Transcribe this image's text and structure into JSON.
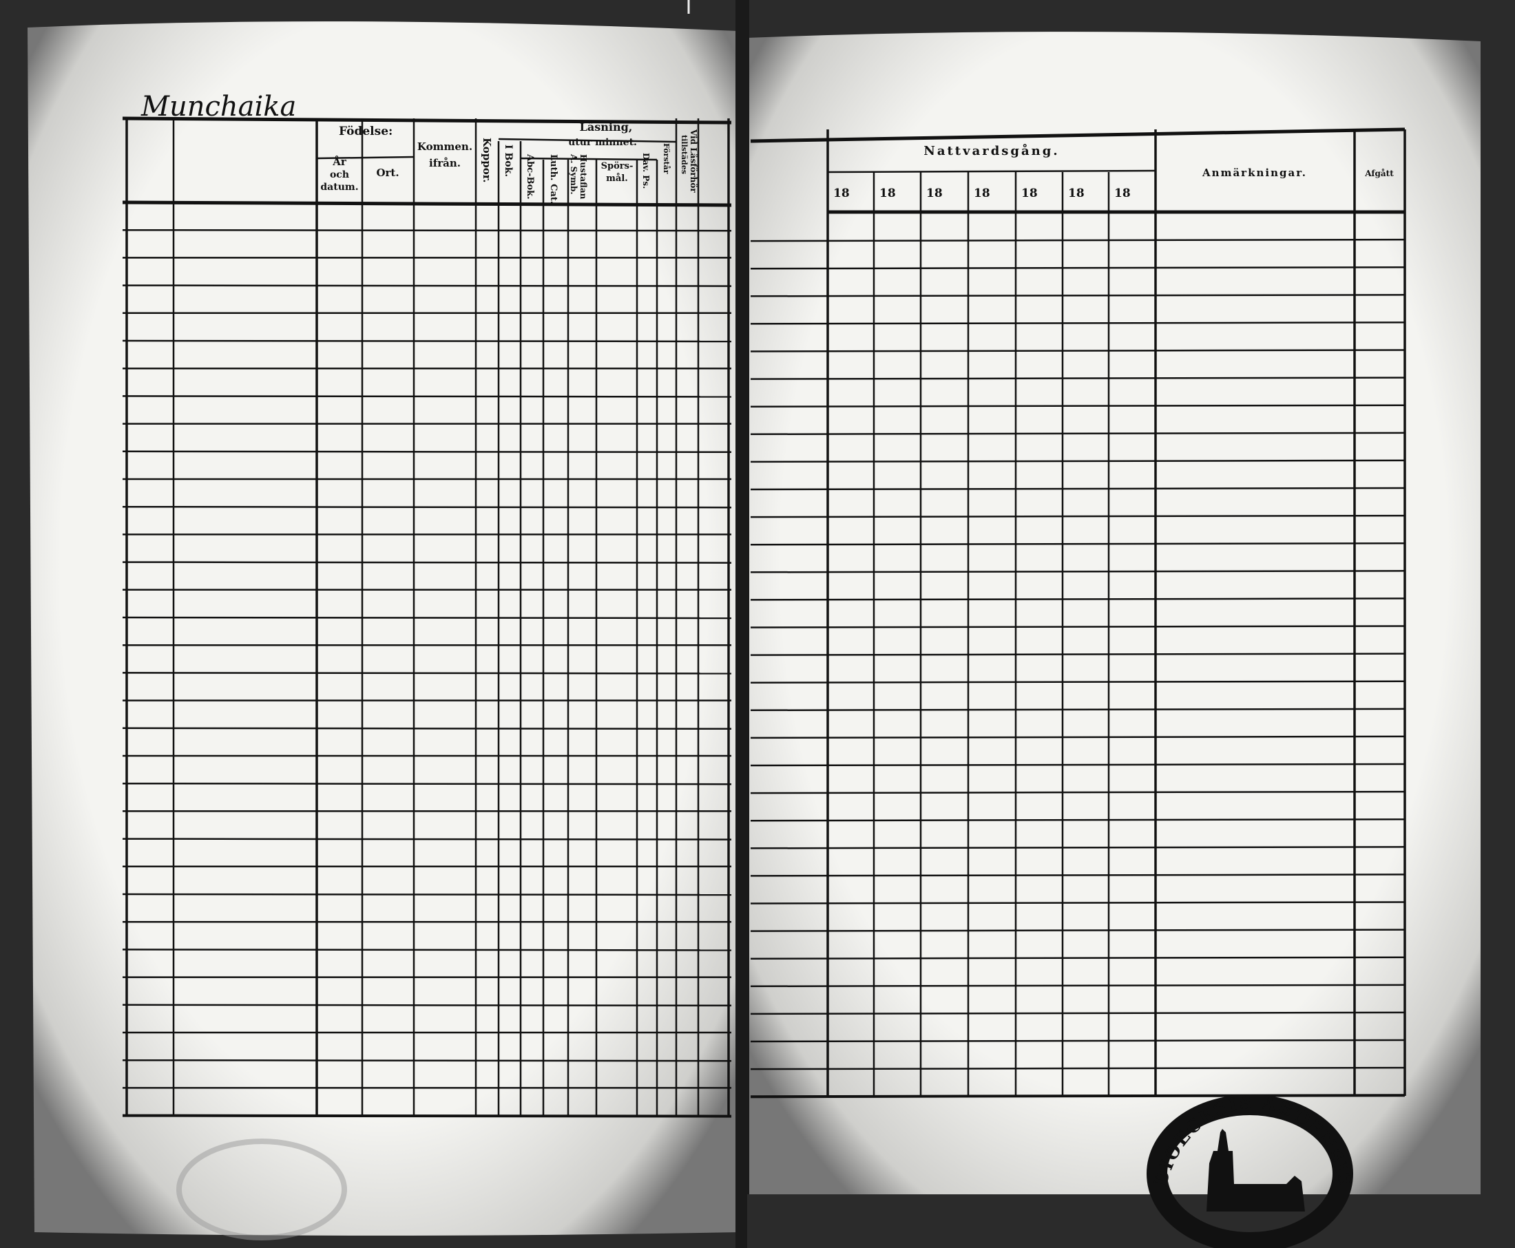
{
  "left_page": {
    "handwritten_place": "Munchaika",
    "headers": {
      "fodelse": "Födelse:",
      "ar_line1": "År",
      "ar_line2": "och",
      "ar_line3": "datum.",
      "ort": "Ort.",
      "kommen_line1": "Kommen.",
      "kommen_line2": "ifrån.",
      "koppor": "Koppor.",
      "lasning": "Läsning,",
      "i_bok": "I Bok.",
      "utur_minnet": "utur minnet.",
      "abc_bok": "Abc-Bok.",
      "luth_cat": "Luth. Cat.",
      "hustaflan": "Hustaflan",
      "a_symb": "A. Symb.",
      "spors_line1": "Spörs-",
      "spors_line2": "mål.",
      "dav_ps": "Dav. Ps.",
      "forstar": "Förstår",
      "vid_lasforhor": "Vid Läsförhör",
      "tillstades": "tillstädes"
    }
  },
  "right_page": {
    "headers": {
      "nattvardsgang": "Nattvardsgång.",
      "year_prefixes": [
        "18",
        "18",
        "18",
        "18",
        "18",
        "18",
        "18"
      ],
      "anmarkningar": "Anmärkningar.",
      "afgatt": "Afgått"
    }
  },
  "seal": {
    "text": "DIOECESIS ABOENSIS",
    "colors": {
      "ink": "#111111",
      "paper": "#f2f2ef",
      "background": "#2b2b2b"
    }
  }
}
